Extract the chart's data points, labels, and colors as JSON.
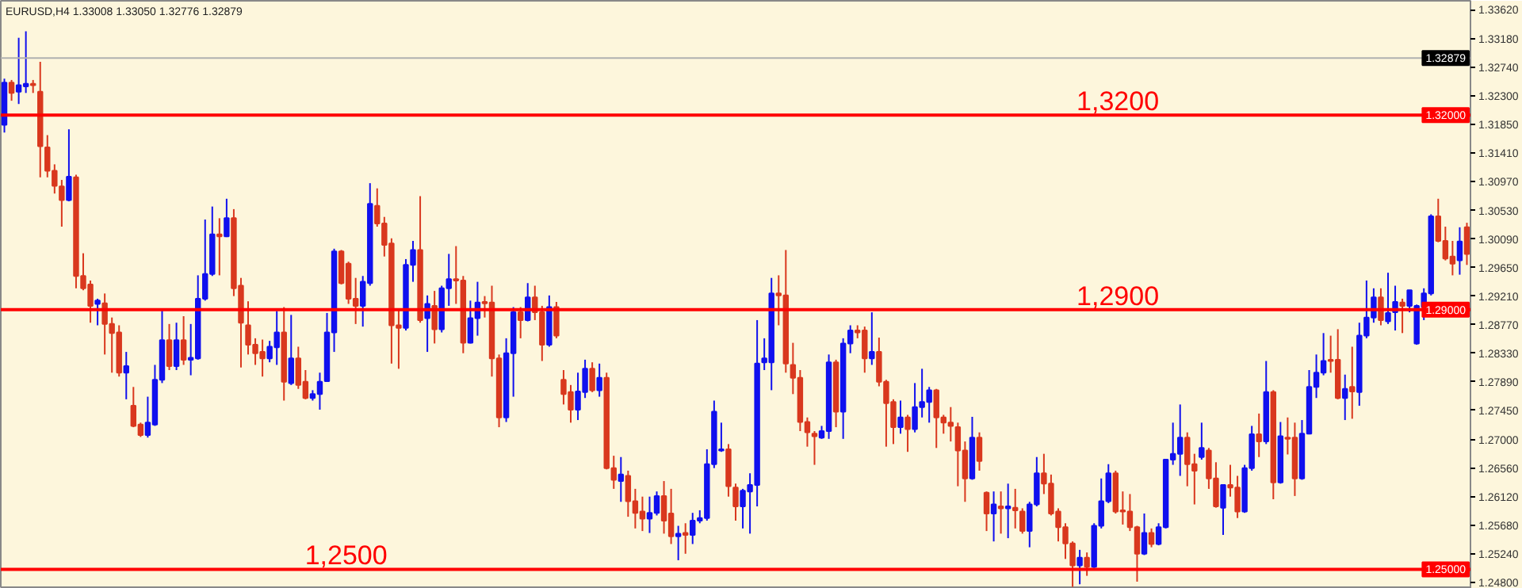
{
  "chart_data": {
    "type": "candlestick",
    "title": "EURUSD,H4  1.33008 1.33050 1.32776 1.32879",
    "categories": [
      null,
      null,
      null,
      null,
      null,
      null,
      null,
      null,
      null,
      null,
      null,
      null,
      null,
      null,
      null,
      null,
      null,
      null,
      null,
      null,
      null,
      null,
      null,
      null,
      null,
      null,
      null,
      null,
      null,
      null,
      null,
      null,
      null,
      null,
      null,
      null,
      null,
      null,
      null,
      null,
      null,
      null,
      null,
      null,
      null,
      null,
      null,
      null,
      null,
      null,
      null,
      null,
      null,
      null,
      null,
      null,
      null,
      null,
      null,
      null,
      null,
      null,
      null,
      null,
      null,
      null,
      null,
      null,
      null,
      null,
      null,
      null,
      null,
      null,
      null,
      null,
      null,
      null,
      null,
      null,
      null,
      null,
      null,
      null,
      null,
      null,
      null,
      null,
      null,
      null,
      null,
      null,
      null,
      null,
      null,
      null,
      null,
      null,
      null,
      null,
      null,
      null,
      null,
      null,
      null,
      null,
      null,
      null,
      null,
      null,
      null,
      null,
      null,
      null,
      null,
      null,
      null,
      null,
      null,
      null,
      null,
      null,
      null,
      null,
      null,
      null,
      null,
      null,
      null,
      null,
      null,
      null,
      null,
      null,
      null,
      null,
      null,
      null,
      null,
      null,
      null,
      null,
      null,
      null,
      null,
      null,
      null,
      null,
      null,
      null,
      null,
      null,
      null,
      null,
      null,
      null,
      null,
      null,
      null,
      null,
      null,
      null,
      null,
      null,
      null,
      null,
      null,
      null,
      null,
      null,
      null,
      null,
      null,
      null,
      null,
      null,
      null,
      null,
      null,
      null,
      null,
      null,
      null,
      null,
      null,
      null,
      null,
      null,
      null,
      null,
      null,
      null,
      null,
      null,
      null,
      null,
      null,
      null,
      null,
      null,
      null,
      null,
      null,
      null,
      null
    ],
    "ohlc": [
      [
        1.3185,
        1.3256,
        1.3173,
        1.325
      ],
      [
        1.325,
        1.3254,
        1.3222,
        1.3234
      ],
      [
        1.3236,
        1.3319,
        1.3217,
        1.3246
      ],
      [
        1.3244,
        1.3329,
        1.3234,
        1.3248
      ],
      [
        1.3248,
        1.3254,
        1.3234,
        1.3246
      ],
      [
        1.3236,
        1.3282,
        1.3104,
        1.3152
      ],
      [
        1.315,
        1.3169,
        1.3104,
        1.3114
      ],
      [
        1.3114,
        1.3124,
        1.3079,
        1.3091
      ],
      [
        1.309,
        1.31,
        1.3028,
        1.3069
      ],
      [
        1.3069,
        1.3178,
        1.3067,
        1.3105
      ],
      [
        1.3104,
        1.3108,
        1.2933,
        1.2952
      ],
      [
        1.2952,
        1.2987,
        1.293,
        1.2933
      ],
      [
        1.2939,
        1.2945,
        1.288,
        1.2906
      ],
      [
        1.2909,
        1.2917,
        1.2876,
        1.2914
      ],
      [
        1.291,
        1.2925,
        1.2831,
        1.2878
      ],
      [
        1.2878,
        1.2888,
        1.2803,
        1.2864
      ],
      [
        1.2865,
        1.2876,
        1.2797,
        1.2803
      ],
      [
        1.2803,
        1.2835,
        1.2762,
        1.2813
      ],
      [
        1.2752,
        1.2781,
        1.2719,
        1.2721
      ],
      [
        1.2723,
        1.2726,
        1.2704,
        1.2707
      ],
      [
        1.2707,
        1.2766,
        1.2703,
        1.2726
      ],
      [
        1.2723,
        1.2815,
        1.2721,
        1.2792
      ],
      [
        1.2792,
        1.29,
        1.2787,
        1.2853
      ],
      [
        1.2853,
        1.2878,
        1.2807,
        1.2813
      ],
      [
        1.2813,
        1.288,
        1.2807,
        1.2853
      ],
      [
        1.2853,
        1.289,
        1.2815,
        1.2823
      ],
      [
        1.2823,
        1.2878,
        1.2799,
        1.2826
      ],
      [
        1.2825,
        1.2953,
        1.2823,
        1.2917
      ],
      [
        1.2917,
        1.3039,
        1.2914,
        1.2955
      ],
      [
        1.2955,
        1.3059,
        1.2952,
        1.3016
      ],
      [
        1.3016,
        1.3041,
        1.2953,
        1.3013
      ],
      [
        1.3013,
        1.3071,
        1.3012,
        1.3041
      ],
      [
        1.3041,
        1.3055,
        1.2921,
        1.2933
      ],
      [
        1.2937,
        1.2949,
        1.2811,
        1.288
      ],
      [
        1.2876,
        1.2913,
        1.2831,
        1.2846
      ],
      [
        1.2846,
        1.2856,
        1.2815,
        1.2833
      ],
      [
        1.2835,
        1.2854,
        1.2797,
        1.2825
      ],
      [
        1.2825,
        1.2852,
        1.2819,
        1.2843
      ],
      [
        1.2842,
        1.2898,
        1.2815,
        1.2865
      ],
      [
        1.2865,
        1.2904,
        1.276,
        1.2789
      ],
      [
        1.2787,
        1.2892,
        1.2784,
        1.2825
      ],
      [
        1.2825,
        1.2843,
        1.2778,
        1.2784
      ],
      [
        1.2789,
        1.2807,
        1.2762,
        1.2764
      ],
      [
        1.2764,
        1.2776,
        1.276,
        1.277
      ],
      [
        1.277,
        1.2803,
        1.2746,
        1.2789
      ],
      [
        1.279,
        1.2895,
        1.2789,
        1.2865
      ],
      [
        1.2865,
        1.2994,
        1.2835,
        1.299
      ],
      [
        1.299,
        1.2992,
        1.2939,
        1.2941
      ],
      [
        1.2971,
        1.2974,
        1.2909,
        1.2917
      ],
      [
        1.2917,
        1.2949,
        1.2878,
        1.2906
      ],
      [
        1.2906,
        1.2952,
        1.2874,
        1.2943
      ],
      [
        1.2941,
        1.3095,
        1.2937,
        1.3063
      ],
      [
        1.306,
        1.3087,
        1.3028,
        1.3033
      ],
      [
        1.3033,
        1.3043,
        1.2982,
        1.3
      ],
      [
        1.3002,
        1.301,
        1.2817,
        1.2876
      ],
      [
        1.2876,
        1.29,
        1.2809,
        1.2872
      ],
      [
        1.2872,
        1.2978,
        1.2868,
        1.2969
      ],
      [
        1.2969,
        1.3006,
        1.2943,
        1.2992
      ],
      [
        1.2992,
        1.3075,
        1.288,
        1.2884
      ],
      [
        1.2887,
        1.2922,
        1.2835,
        1.2909
      ],
      [
        1.2906,
        1.2929,
        1.2848,
        1.287
      ],
      [
        1.287,
        1.2937,
        1.2865,
        1.2933
      ],
      [
        1.2933,
        1.2986,
        1.2906,
        1.2947
      ],
      [
        1.2947,
        1.2998,
        1.2909,
        1.2945
      ],
      [
        1.2945,
        1.2952,
        1.2833,
        1.2849
      ],
      [
        1.2849,
        1.2914,
        1.2848,
        1.2887
      ],
      [
        1.2887,
        1.2943,
        1.286,
        1.2911
      ],
      [
        1.2912,
        1.2921,
        1.2888,
        1.291
      ],
      [
        1.2911,
        1.2937,
        1.2797,
        1.2825
      ],
      [
        1.2825,
        1.2831,
        1.2719,
        1.2734
      ],
      [
        1.2734,
        1.2856,
        1.2727,
        1.2833
      ],
      [
        1.2833,
        1.2904,
        1.2766,
        1.2896
      ],
      [
        1.2896,
        1.2904,
        1.2856,
        1.2884
      ],
      [
        1.2884,
        1.2941,
        1.2882,
        1.2919
      ],
      [
        1.2919,
        1.2937,
        1.2884,
        1.2896
      ],
      [
        1.2896,
        1.2906,
        1.2821,
        1.2846
      ],
      [
        1.2846,
        1.2922,
        1.2843,
        1.2904
      ],
      [
        1.2904,
        1.2912,
        1.2856,
        1.286
      ],
      [
        1.2792,
        1.2807,
        1.2754,
        1.277
      ],
      [
        1.2773,
        1.2784,
        1.2726,
        1.2746
      ],
      [
        1.2746,
        1.2803,
        1.273,
        1.2774
      ],
      [
        1.2773,
        1.2823,
        1.2764,
        1.2809
      ],
      [
        1.2809,
        1.2819,
        1.2773,
        1.2776
      ],
      [
        1.2776,
        1.2817,
        1.2766,
        1.2795
      ],
      [
        1.2795,
        1.2803,
        1.2654,
        1.2656
      ],
      [
        1.2656,
        1.2675,
        1.2624,
        1.2638
      ],
      [
        1.2636,
        1.2673,
        1.2604,
        1.2646
      ],
      [
        1.2644,
        1.2652,
        1.2581,
        1.2605
      ],
      [
        1.2605,
        1.2624,
        1.2563,
        1.2587
      ],
      [
        1.2589,
        1.2612,
        1.2559,
        1.2578
      ],
      [
        1.2578,
        1.2612,
        1.2556,
        1.2587
      ],
      [
        1.2587,
        1.262,
        1.2583,
        1.2613
      ],
      [
        1.2613,
        1.2636,
        1.2555,
        1.2575
      ],
      [
        1.2586,
        1.2624,
        1.2539,
        1.2551
      ],
      [
        1.2551,
        1.2567,
        1.2514,
        1.2555
      ],
      [
        1.2556,
        1.2571,
        1.2524,
        1.2553
      ],
      [
        1.2553,
        1.2587,
        1.2539,
        1.2575
      ],
      [
        1.2575,
        1.2591,
        1.2571,
        1.2579
      ],
      [
        1.2579,
        1.2685,
        1.2575,
        1.2662
      ],
      [
        1.2662,
        1.276,
        1.2656,
        1.2743
      ],
      [
        1.2683,
        1.2726,
        1.2681,
        1.2685
      ],
      [
        1.2685,
        1.2693,
        1.2612,
        1.2628
      ],
      [
        1.2626,
        1.2632,
        1.2575,
        1.2597
      ],
      [
        1.2597,
        1.2624,
        1.2563,
        1.2621
      ],
      [
        1.262,
        1.2648,
        1.2555,
        1.263
      ],
      [
        1.263,
        1.2884,
        1.2597,
        1.2817
      ],
      [
        1.2819,
        1.2856,
        1.2807,
        1.2825
      ],
      [
        1.2819,
        1.2949,
        1.2776,
        1.2925
      ],
      [
        1.2925,
        1.2953,
        1.2876,
        1.2922
      ],
      [
        1.2922,
        1.2992,
        1.2803,
        1.2817
      ],
      [
        1.2815,
        1.2849,
        1.277,
        1.2795
      ],
      [
        1.2795,
        1.2807,
        1.2713,
        1.2727
      ],
      [
        1.2727,
        1.2734,
        1.2689,
        1.2711
      ],
      [
        1.2709,
        1.2713,
        1.2661,
        1.2705
      ],
      [
        1.2703,
        1.2721,
        1.2701,
        1.2713
      ],
      [
        1.2713,
        1.2831,
        1.2701,
        1.2819
      ],
      [
        1.2819,
        1.2823,
        1.2719,
        1.2743
      ],
      [
        1.2743,
        1.2856,
        1.2701,
        1.2848
      ],
      [
        1.2848,
        1.2876,
        1.2833,
        1.2868
      ],
      [
        1.2868,
        1.2876,
        1.2856,
        1.2865
      ],
      [
        1.2868,
        1.2874,
        1.2803,
        1.2825
      ],
      [
        1.2825,
        1.2896,
        1.2815,
        1.2835
      ],
      [
        1.2835,
        1.2857,
        1.2782,
        1.2789
      ],
      [
        1.2789,
        1.2792,
        1.2689,
        1.2756
      ],
      [
        1.2758,
        1.2762,
        1.2693,
        1.2719
      ],
      [
        1.2719,
        1.276,
        1.2709,
        1.2734
      ],
      [
        1.2734,
        1.2738,
        1.2681,
        1.2716
      ],
      [
        1.2716,
        1.2787,
        1.2711,
        1.275
      ],
      [
        1.275,
        1.2809,
        1.2734,
        1.2758
      ],
      [
        1.2758,
        1.2781,
        1.2726,
        1.2776
      ],
      [
        1.2776,
        1.2778,
        1.2687,
        1.2734
      ],
      [
        1.2734,
        1.2738,
        1.2709,
        1.2726
      ],
      [
        1.2726,
        1.275,
        1.2697,
        1.2721
      ],
      [
        1.2719,
        1.2726,
        1.2628,
        1.2683
      ],
      [
        1.2683,
        1.2697,
        1.2604,
        1.264
      ],
      [
        1.264,
        1.2735,
        1.2638,
        1.2703
      ],
      [
        1.2703,
        1.2711,
        1.2652,
        1.2667
      ],
      [
        1.2618,
        1.262,
        1.2559,
        1.2586
      ],
      [
        1.2586,
        1.262,
        1.2543,
        1.26
      ],
      [
        1.2597,
        1.262,
        1.2555,
        1.2594
      ],
      [
        1.2594,
        1.2632,
        1.2548,
        1.2597
      ],
      [
        1.2595,
        1.2624,
        1.2563,
        1.2591
      ],
      [
        1.2589,
        1.2594,
        1.2555,
        1.2559
      ],
      [
        1.2559,
        1.2604,
        1.2534,
        1.26
      ],
      [
        1.26,
        1.2673,
        1.2597,
        1.2648
      ],
      [
        1.2648,
        1.2678,
        1.2616,
        1.2632
      ],
      [
        1.2632,
        1.2646,
        1.2583,
        1.2586
      ],
      [
        1.2589,
        1.2594,
        1.2543,
        1.2565
      ],
      [
        1.2565,
        1.2571,
        1.2516,
        1.254
      ],
      [
        1.254,
        1.2543,
        1.2473,
        1.2506
      ],
      [
        1.2506,
        1.253,
        1.2477,
        1.2518
      ],
      [
        1.2518,
        1.2526,
        1.249,
        1.2504
      ],
      [
        1.2504,
        1.2571,
        1.2502,
        1.2567
      ],
      [
        1.2567,
        1.264,
        1.2563,
        1.2605
      ],
      [
        1.2605,
        1.2662,
        1.2602,
        1.2648
      ],
      [
        1.2648,
        1.2652,
        1.2586,
        1.2589
      ],
      [
        1.2591,
        1.262,
        1.2569,
        1.2589
      ],
      [
        1.2589,
        1.2616,
        1.2559,
        1.2565
      ],
      [
        1.2565,
        1.2567,
        1.2481,
        1.2524
      ],
      [
        1.2524,
        1.2586,
        1.2522,
        1.2556
      ],
      [
        1.2556,
        1.2563,
        1.2534,
        1.2539
      ],
      [
        1.2539,
        1.2571,
        1.2537,
        1.2565
      ],
      [
        1.2565,
        1.267,
        1.2563,
        1.2669
      ],
      [
        1.2669,
        1.2726,
        1.2661,
        1.2678
      ],
      [
        1.2678,
        1.2754,
        1.2644,
        1.2703
      ],
      [
        1.2703,
        1.2711,
        1.2628,
        1.2662
      ],
      [
        1.2662,
        1.2678,
        1.26,
        1.2652
      ],
      [
        1.2673,
        1.2726,
        1.2669,
        1.2687
      ],
      [
        1.2683,
        1.2687,
        1.2624,
        1.264
      ],
      [
        1.264,
        1.2665,
        1.2595,
        1.2597
      ],
      [
        1.2595,
        1.263,
        1.2553,
        1.263
      ],
      [
        1.263,
        1.2661,
        1.2612,
        1.2626
      ],
      [
        1.2626,
        1.2644,
        1.2579,
        1.2589
      ],
      [
        1.2589,
        1.2661,
        1.2587,
        1.2656
      ],
      [
        1.2656,
        1.2721,
        1.2652,
        1.2708
      ],
      [
        1.2708,
        1.274,
        1.2673,
        1.2697
      ],
      [
        1.2697,
        1.2821,
        1.2693,
        1.2773
      ],
      [
        1.2773,
        1.2776,
        1.2608,
        1.2634
      ],
      [
        1.2634,
        1.2727,
        1.2632,
        1.2705
      ],
      [
        1.2703,
        1.2734,
        1.2677,
        1.2701
      ],
      [
        1.2703,
        1.2726,
        1.2613,
        1.264
      ],
      [
        1.264,
        1.273,
        1.2638,
        1.2709
      ],
      [
        1.2709,
        1.2807,
        1.2708,
        1.2781
      ],
      [
        1.2781,
        1.2831,
        1.2764,
        1.2803
      ],
      [
        1.2803,
        1.2864,
        1.2799,
        1.2821
      ],
      [
        1.2823,
        1.286,
        1.2803,
        1.2821
      ],
      [
        1.2823,
        1.287,
        1.2762,
        1.2764
      ],
      [
        1.2764,
        1.28,
        1.273,
        1.2778
      ],
      [
        1.2781,
        1.2843,
        1.2732,
        1.2774
      ],
      [
        1.2773,
        1.288,
        1.2752,
        1.286
      ],
      [
        1.286,
        1.2945,
        1.2856,
        1.2888
      ],
      [
        1.2888,
        1.2933,
        1.288,
        1.2919
      ],
      [
        1.2919,
        1.2933,
        1.2876,
        1.2884
      ],
      [
        1.2882,
        1.2957,
        1.2878,
        1.2895
      ],
      [
        1.2896,
        1.2937,
        1.2868,
        1.2912
      ],
      [
        1.2911,
        1.2917,
        1.2864,
        1.2906
      ],
      [
        1.2906,
        1.293,
        1.2896,
        1.293
      ],
      [
        1.2848,
        1.2908,
        1.2846,
        1.2906
      ],
      [
        1.2904,
        1.2933,
        1.2884,
        1.2925
      ],
      [
        1.2925,
        1.3047,
        1.2922,
        1.3044
      ],
      [
        1.3044,
        1.3071,
        1.3004,
        1.3006
      ],
      [
        1.3006,
        1.3028,
        1.2976,
        1.2979
      ],
      [
        1.2982,
        1.3006,
        1.2953,
        1.2971
      ],
      [
        1.2976,
        1.3027,
        1.2954,
        1.3005
      ],
      [
        1.3027,
        1.3034,
        1.2969,
        1.2986
      ]
    ],
    "ylim": [
      1.247,
      1.3376
    ],
    "yticks": [
      {
        "value": 1.3362,
        "label": "1.33620"
      },
      {
        "value": 1.3318,
        "label": "1.33180"
      },
      {
        "value": 1.3274,
        "label": "1.32740"
      },
      {
        "value": 1.323,
        "label": "1.32300"
      },
      {
        "value": 1.3185,
        "label": "1.31850"
      },
      {
        "value": 1.3141,
        "label": "1.31410"
      },
      {
        "value": 1.3097,
        "label": "1.30970"
      },
      {
        "value": 1.3053,
        "label": "1.30530"
      },
      {
        "value": 1.3009,
        "label": "1.30090"
      },
      {
        "value": 1.2965,
        "label": "1.29650"
      },
      {
        "value": 1.2921,
        "label": "1.29210"
      },
      {
        "value": 1.2877,
        "label": "1.28770"
      },
      {
        "value": 1.2833,
        "label": "1.28330"
      },
      {
        "value": 1.2789,
        "label": "1.27890"
      },
      {
        "value": 1.2745,
        "label": "1.27450"
      },
      {
        "value": 1.27,
        "label": "1.27000"
      },
      {
        "value": 1.2656,
        "label": "1.26560"
      },
      {
        "value": 1.2612,
        "label": "1.26120"
      },
      {
        "value": 1.2568,
        "label": "1.25680"
      },
      {
        "value": 1.2524,
        "label": "1.25240"
      },
      {
        "value": 1.248,
        "label": "1.24800"
      }
    ],
    "tick_labels": "y",
    "ref_lines": [
      {
        "axis": "y",
        "value": 1.32,
        "label": "1,3200",
        "color": "#ff0000"
      },
      {
        "axis": "y",
        "value": 1.29,
        "label": "1,2900",
        "color": "#ff0000"
      },
      {
        "axis": "y",
        "value": 1.25,
        "label": "1,2500",
        "color": "#ff0000"
      },
      {
        "axis": "y",
        "value": 1.32879,
        "color": "#b0b0b0"
      }
    ],
    "annotations": [
      {
        "text": "1.32000",
        "y": 1.32
      },
      {
        "text": "1.29000",
        "y": 1.29
      },
      {
        "text": "1.25000",
        "y": 1.25
      },
      {
        "text": "1.32879",
        "y": 1.32879
      }
    ]
  }
}
